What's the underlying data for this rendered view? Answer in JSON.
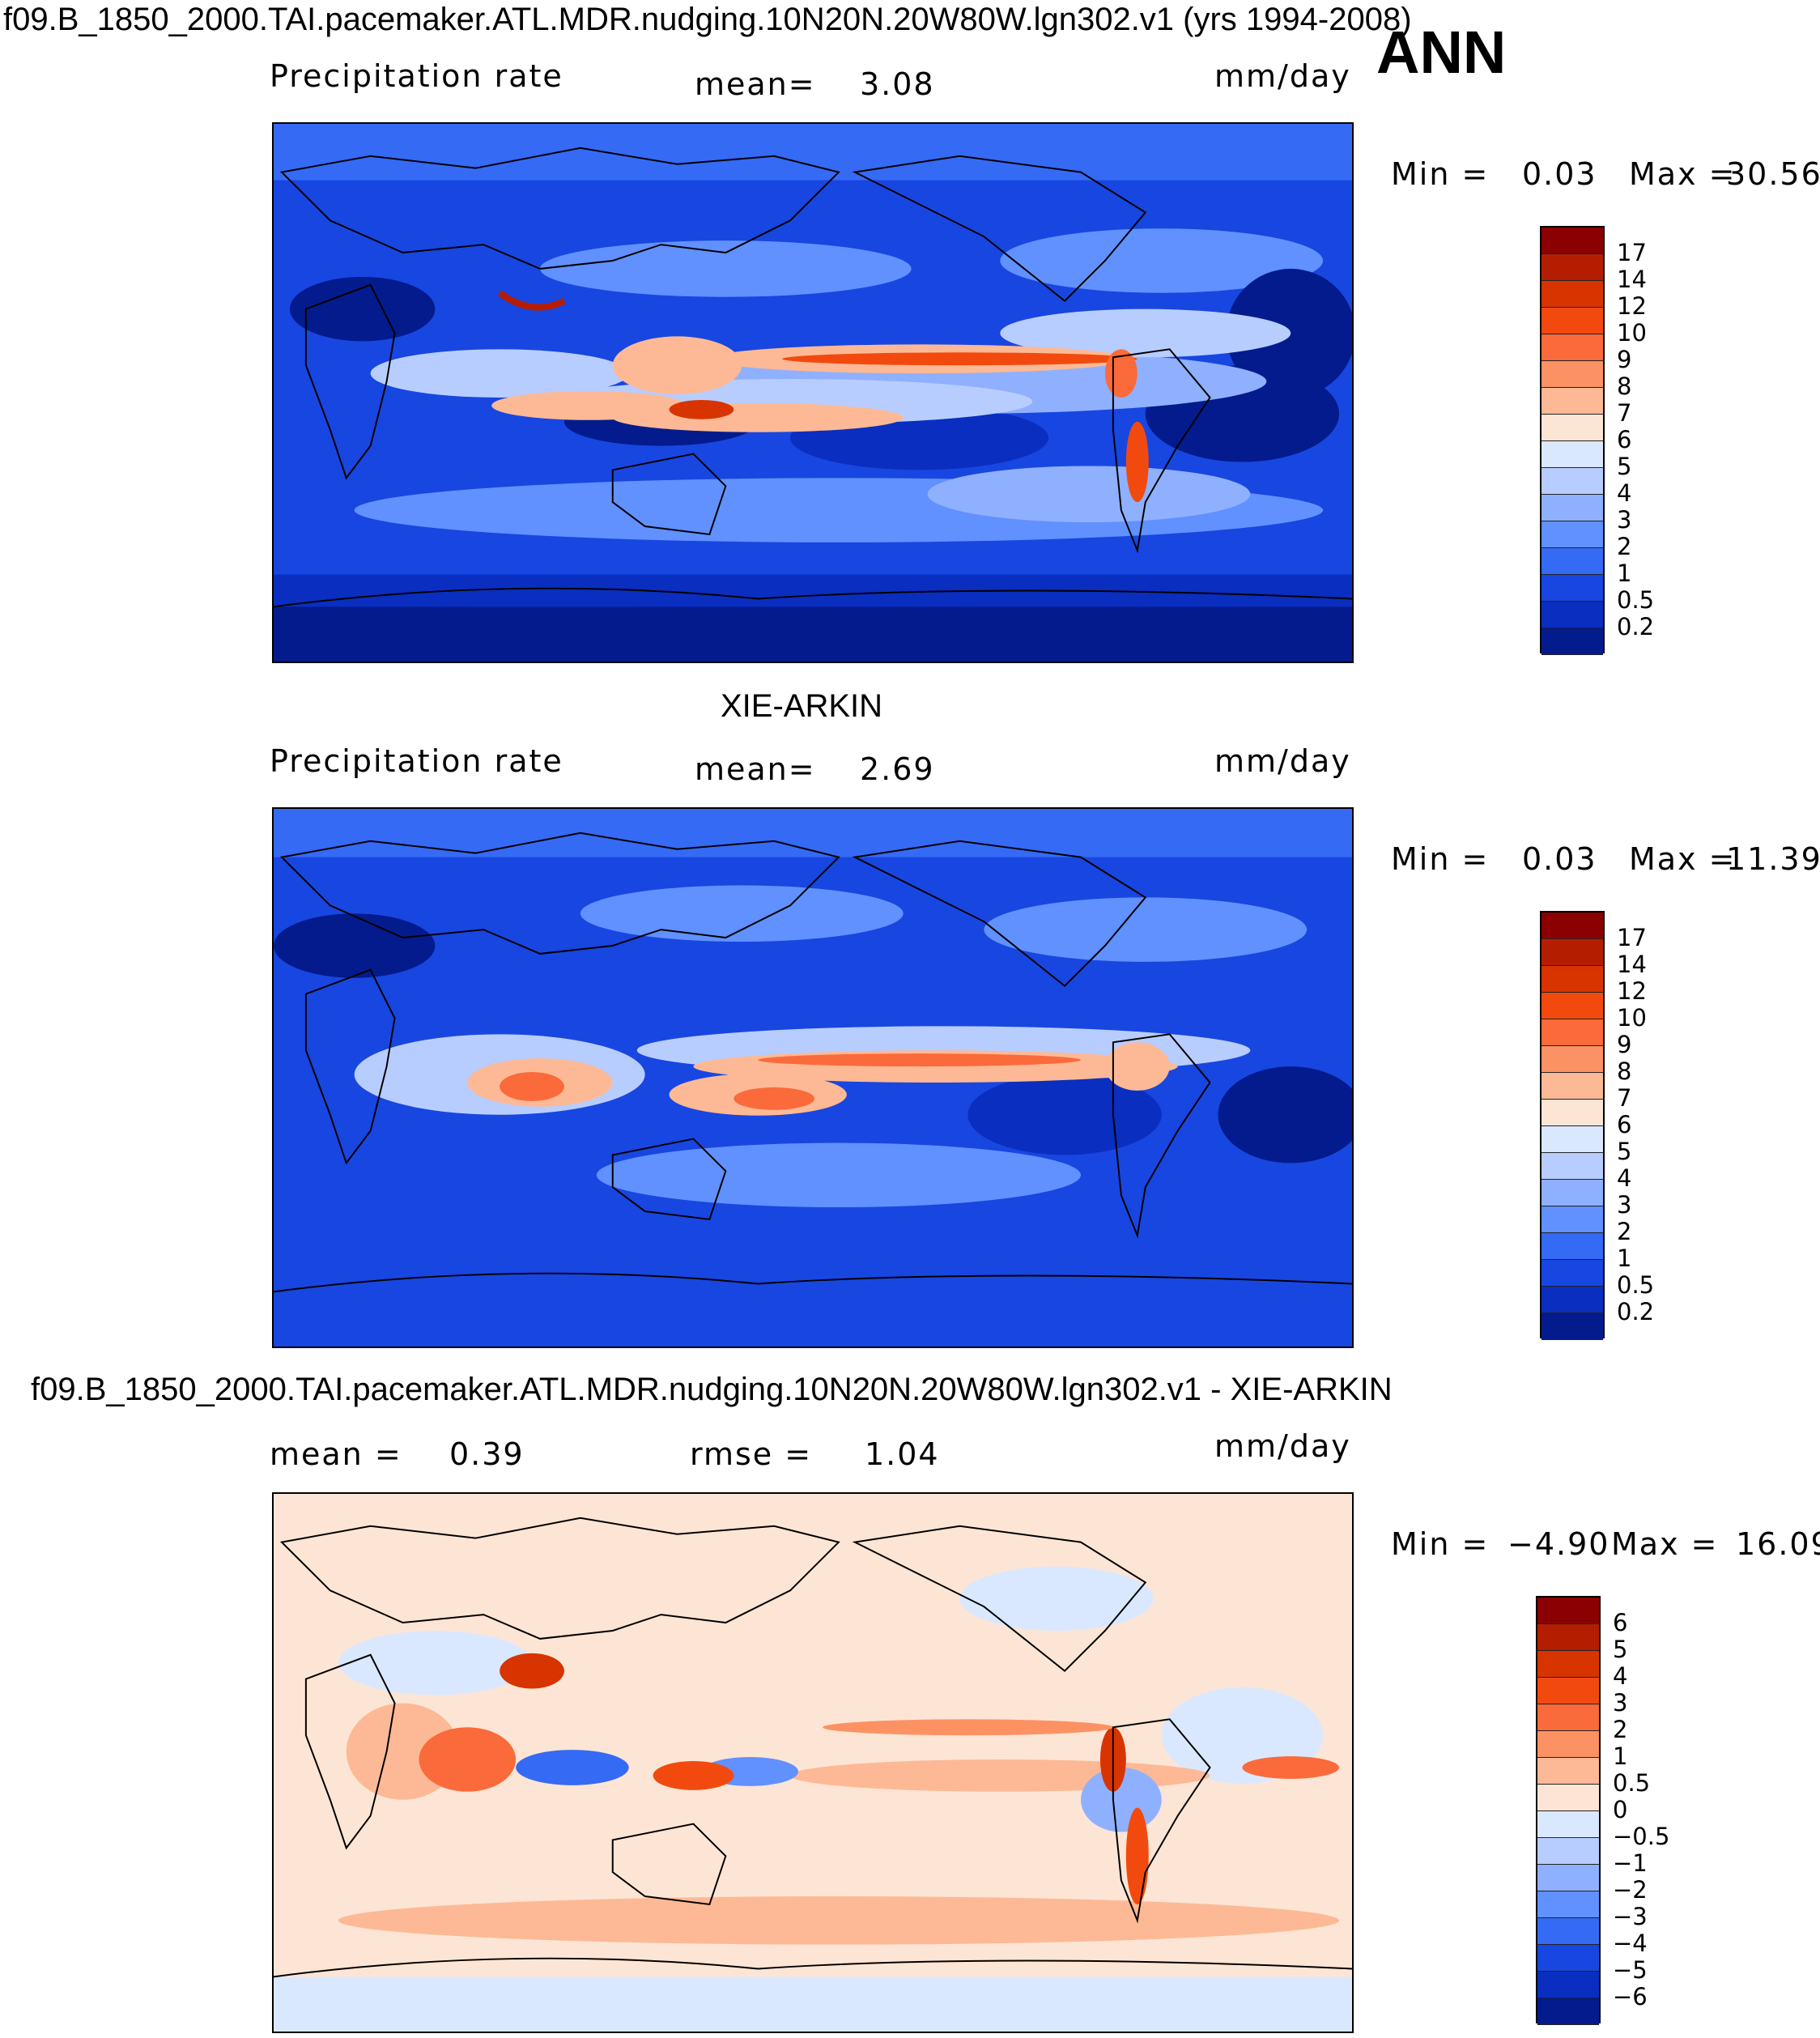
{
  "header": {
    "case_title": "f09.B_1850_2000.TAI.pacemaker.ATL.MDR.nudging.10N20N.20W80W.lgn302.v1 (yrs 1994-2008)",
    "season": "ANN"
  },
  "panels": [
    {
      "heading": "",
      "left_label": "Precipitation  rate",
      "stat_label": "mean=",
      "stat_value": "3.08",
      "units": "mm/day",
      "min_label": "Min  =",
      "min_value": "0.03",
      "max_label": "Max  =",
      "max_value": "30.56",
      "colorbar": {
        "levels": [
          "17",
          "14",
          "12",
          "10",
          "9",
          "8",
          "7",
          "6",
          "5",
          "4",
          "3",
          "2",
          "1",
          "0.5",
          "0.2"
        ],
        "colors": [
          "#8b0000",
          "#b51d00",
          "#d83400",
          "#f24a0e",
          "#fa6a3a",
          "#fc9264",
          "#fdb995",
          "#fde5d5",
          "#dae8ff",
          "#b8cdff",
          "#8fb0ff",
          "#6190ff",
          "#356af5",
          "#1846e0",
          "#0a2ec0",
          "#031b8c"
        ]
      }
    },
    {
      "heading": "XIE-ARKIN",
      "left_label": "Precipitation  rate",
      "stat_label": "mean=",
      "stat_value": "2.69",
      "units": "mm/day",
      "min_label": "Min  =",
      "min_value": "0.03",
      "max_label": "Max  =",
      "max_value": "11.39",
      "colorbar": {
        "levels": [
          "17",
          "14",
          "12",
          "10",
          "9",
          "8",
          "7",
          "6",
          "5",
          "4",
          "3",
          "2",
          "1",
          "0.5",
          "0.2"
        ],
        "colors": [
          "#8b0000",
          "#b51d00",
          "#d83400",
          "#f24a0e",
          "#fa6a3a",
          "#fc9264",
          "#fdb995",
          "#fde5d5",
          "#dae8ff",
          "#b8cdff",
          "#8fb0ff",
          "#6190ff",
          "#356af5",
          "#1846e0",
          "#0a2ec0",
          "#031b8c"
        ]
      }
    },
    {
      "heading": "f09.B_1850_2000.TAI.pacemaker.ATL.MDR.nudging.10N20N.20W80W.lgn302.v1 - XIE-ARKIN",
      "left_label": "mean  =",
      "left_value": "0.39",
      "stat_label": "rmse  =",
      "stat_value": "1.04",
      "units": "mm/day",
      "min_label": "Min  =",
      "min_value": "−4.90",
      "max_label": "Max  =",
      "max_value": "16.09",
      "colorbar": {
        "levels": [
          "6",
          "5",
          "4",
          "3",
          "2",
          "1",
          "0.5",
          "0",
          "−0.5",
          "−1",
          "−2",
          "−3",
          "−4",
          "−5",
          "−6"
        ],
        "colors": [
          "#8b0000",
          "#b51d00",
          "#d83400",
          "#f24a0e",
          "#fa6a3a",
          "#fc9264",
          "#fdb995",
          "#fde5d5",
          "#dae8ff",
          "#b8cdff",
          "#8fb0ff",
          "#6190ff",
          "#356af5",
          "#1846e0",
          "#0a2ec0",
          "#031b8c"
        ]
      }
    }
  ]
}
